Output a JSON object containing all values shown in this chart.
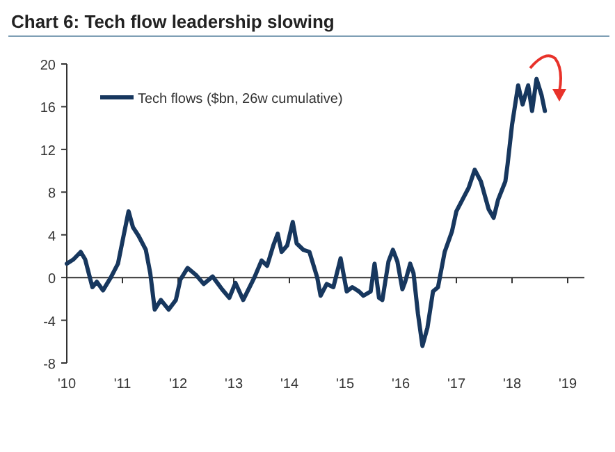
{
  "chart_data": {
    "type": "line",
    "title": "Chart 6: Tech flow leadership slowing",
    "x": [
      2010.0,
      2010.12,
      2010.25,
      2010.33,
      2010.46,
      2010.54,
      2010.65,
      2010.79,
      2010.92,
      2011.02,
      2011.11,
      2011.19,
      2011.29,
      2011.42,
      2011.5,
      2011.58,
      2011.69,
      2011.83,
      2011.96,
      2012.04,
      2012.17,
      2012.33,
      2012.46,
      2012.62,
      2012.79,
      2012.92,
      2013.03,
      2013.17,
      2013.37,
      2013.5,
      2013.6,
      2013.71,
      2013.79,
      2013.86,
      2013.96,
      2014.06,
      2014.13,
      2014.25,
      2014.36,
      2014.5,
      2014.56,
      2014.67,
      2014.79,
      2014.92,
      2015.03,
      2015.13,
      2015.25,
      2015.33,
      2015.46,
      2015.53,
      2015.61,
      2015.67,
      2015.78,
      2015.86,
      2015.94,
      2016.03,
      2016.08,
      2016.17,
      2016.23,
      2016.31,
      2016.39,
      2016.48,
      2016.58,
      2016.67,
      2016.79,
      2016.92,
      2017.0,
      2017.13,
      2017.22,
      2017.33,
      2017.44,
      2017.58,
      2017.67,
      2017.75,
      2017.88,
      2017.92,
      2018.0,
      2018.11,
      2018.19,
      2018.29,
      2018.36,
      2018.44,
      2018.53,
      2018.59
    ],
    "series": [
      {
        "name": "Tech flows ($bn, 26w cumulative)",
        "color": "#17375e",
        "values": [
          1.3,
          1.7,
          2.4,
          1.7,
          -0.9,
          -0.4,
          -1.2,
          0,
          1.3,
          3.9,
          6.2,
          4.7,
          3.9,
          2.6,
          0.4,
          -3.0,
          -2.1,
          -3.0,
          -2.1,
          -0.2,
          0.9,
          0.2,
          -0.6,
          0.1,
          -1.1,
          -1.9,
          -0.5,
          -2.1,
          0,
          1.6,
          1.1,
          3.0,
          4.1,
          2.4,
          3.0,
          5.2,
          3.2,
          2.6,
          2.4,
          0,
          -1.7,
          -0.6,
          -0.9,
          1.8,
          -1.3,
          -0.9,
          -1.3,
          -1.7,
          -1.3,
          1.3,
          -1.9,
          -2.1,
          1.5,
          2.6,
          1.5,
          -1.1,
          -0.4,
          1.3,
          0.4,
          -3.4,
          -6.4,
          -4.7,
          -1.3,
          -0.9,
          2.4,
          4.3,
          6.2,
          7.5,
          8.4,
          10.1,
          9.0,
          6.4,
          5.6,
          7.3,
          9.0,
          10.6,
          14.3,
          18.0,
          16.2,
          18.0,
          15.6,
          18.6,
          17.1,
          15.6
        ]
      }
    ],
    "xlim": [
      2010,
      2019.3
    ],
    "xticks": [
      {
        "value": 2010,
        "label": "'10"
      },
      {
        "value": 2011,
        "label": "'11"
      },
      {
        "value": 2012,
        "label": "'12"
      },
      {
        "value": 2013,
        "label": "'13"
      },
      {
        "value": 2014,
        "label": "'14"
      },
      {
        "value": 2015,
        "label": "'15"
      },
      {
        "value": 2016,
        "label": "'16"
      },
      {
        "value": 2017,
        "label": "'17"
      },
      {
        "value": 2018,
        "label": "'18"
      },
      {
        "value": 2019,
        "label": "'19"
      }
    ],
    "ylim": [
      -8,
      20
    ],
    "yticks": [
      -8,
      -4,
      0,
      4,
      8,
      12,
      16,
      20
    ],
    "legend": "top left",
    "line_style": "solid"
  }
}
